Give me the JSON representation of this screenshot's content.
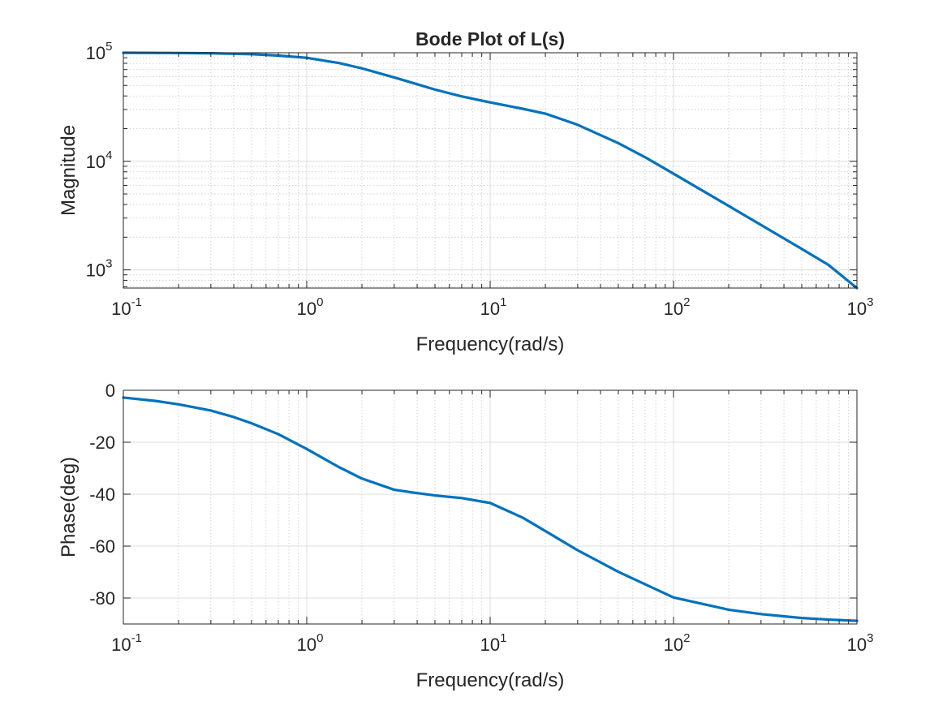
{
  "chart_data": [
    {
      "type": "line",
      "title": "Bode Plot of L(s)",
      "xlabel": "Frequency(rad/s)",
      "ylabel": "Magnitude",
      "xscale": "log",
      "yscale": "log",
      "xlim": [
        0.1,
        1000
      ],
      "ylim": [
        680,
        100000
      ],
      "grid": true,
      "minor_grid": true,
      "x_ticks": [
        {
          "base": "10",
          "exp": "-1"
        },
        {
          "base": "10",
          "exp": "0"
        },
        {
          "base": "10",
          "exp": "1"
        },
        {
          "base": "10",
          "exp": "2"
        },
        {
          "base": "10",
          "exp": "3"
        }
      ],
      "y_ticks": [
        {
          "value": 1000,
          "base": "10",
          "exp": "3"
        },
        {
          "value": 10000,
          "base": "10",
          "exp": "4"
        },
        {
          "value": 100000,
          "base": "10",
          "exp": "5"
        }
      ],
      "series": [
        {
          "color": "#0072bd",
          "x": [
            0.1,
            0.2,
            0.3,
            0.5,
            0.7,
            1,
            1.5,
            2,
            3,
            4,
            5,
            7,
            10,
            15,
            20,
            30,
            50,
            70,
            100,
            200,
            300,
            500,
            700,
            1000
          ],
          "y": [
            100000,
            99500,
            98900,
            96900,
            94200,
            89800,
            80400,
            71800,
            59200,
            51300,
            45800,
            39600,
            34900,
            30500,
            27500,
            21700,
            14700,
            10900,
            7690,
            3880,
            2590,
            1560,
            1110,
            680
          ]
        }
      ]
    },
    {
      "type": "line",
      "title": "",
      "xlabel": "Frequency(rad/s)",
      "ylabel": "Phase(deg)",
      "xscale": "log",
      "yscale": "linear",
      "xlim": [
        0.1,
        1000
      ],
      "ylim": [
        -90,
        0
      ],
      "grid": true,
      "minor_grid": true,
      "x_ticks": [
        {
          "base": "10",
          "exp": "-1"
        },
        {
          "base": "10",
          "exp": "0"
        },
        {
          "base": "10",
          "exp": "1"
        },
        {
          "base": "10",
          "exp": "2"
        },
        {
          "base": "10",
          "exp": "3"
        }
      ],
      "y_ticks": [
        {
          "value": 0,
          "label": "0"
        },
        {
          "value": -20,
          "label": "-20"
        },
        {
          "value": -40,
          "label": "-40"
        },
        {
          "value": -60,
          "label": "-60"
        },
        {
          "value": -80,
          "label": "-80"
        }
      ],
      "series": [
        {
          "color": "#0072bd",
          "x": [
            0.1,
            0.15,
            0.2,
            0.3,
            0.4,
            0.5,
            0.7,
            1,
            1.5,
            2,
            3,
            4,
            5,
            7,
            10,
            15,
            20,
            30,
            50,
            70,
            100,
            200,
            300,
            500,
            700,
            1000
          ],
          "y": [
            -2.8,
            -4.1,
            -5.4,
            -7.8,
            -10.3,
            -12.7,
            -16.9,
            -22.6,
            -29.6,
            -34.0,
            -38.3,
            -39.6,
            -40.5,
            -41.5,
            -43.4,
            -49.0,
            -54.2,
            -61.6,
            -69.9,
            -74.7,
            -79.8,
            -84.5,
            -86.2,
            -87.7,
            -88.3,
            -88.8
          ]
        }
      ]
    }
  ]
}
